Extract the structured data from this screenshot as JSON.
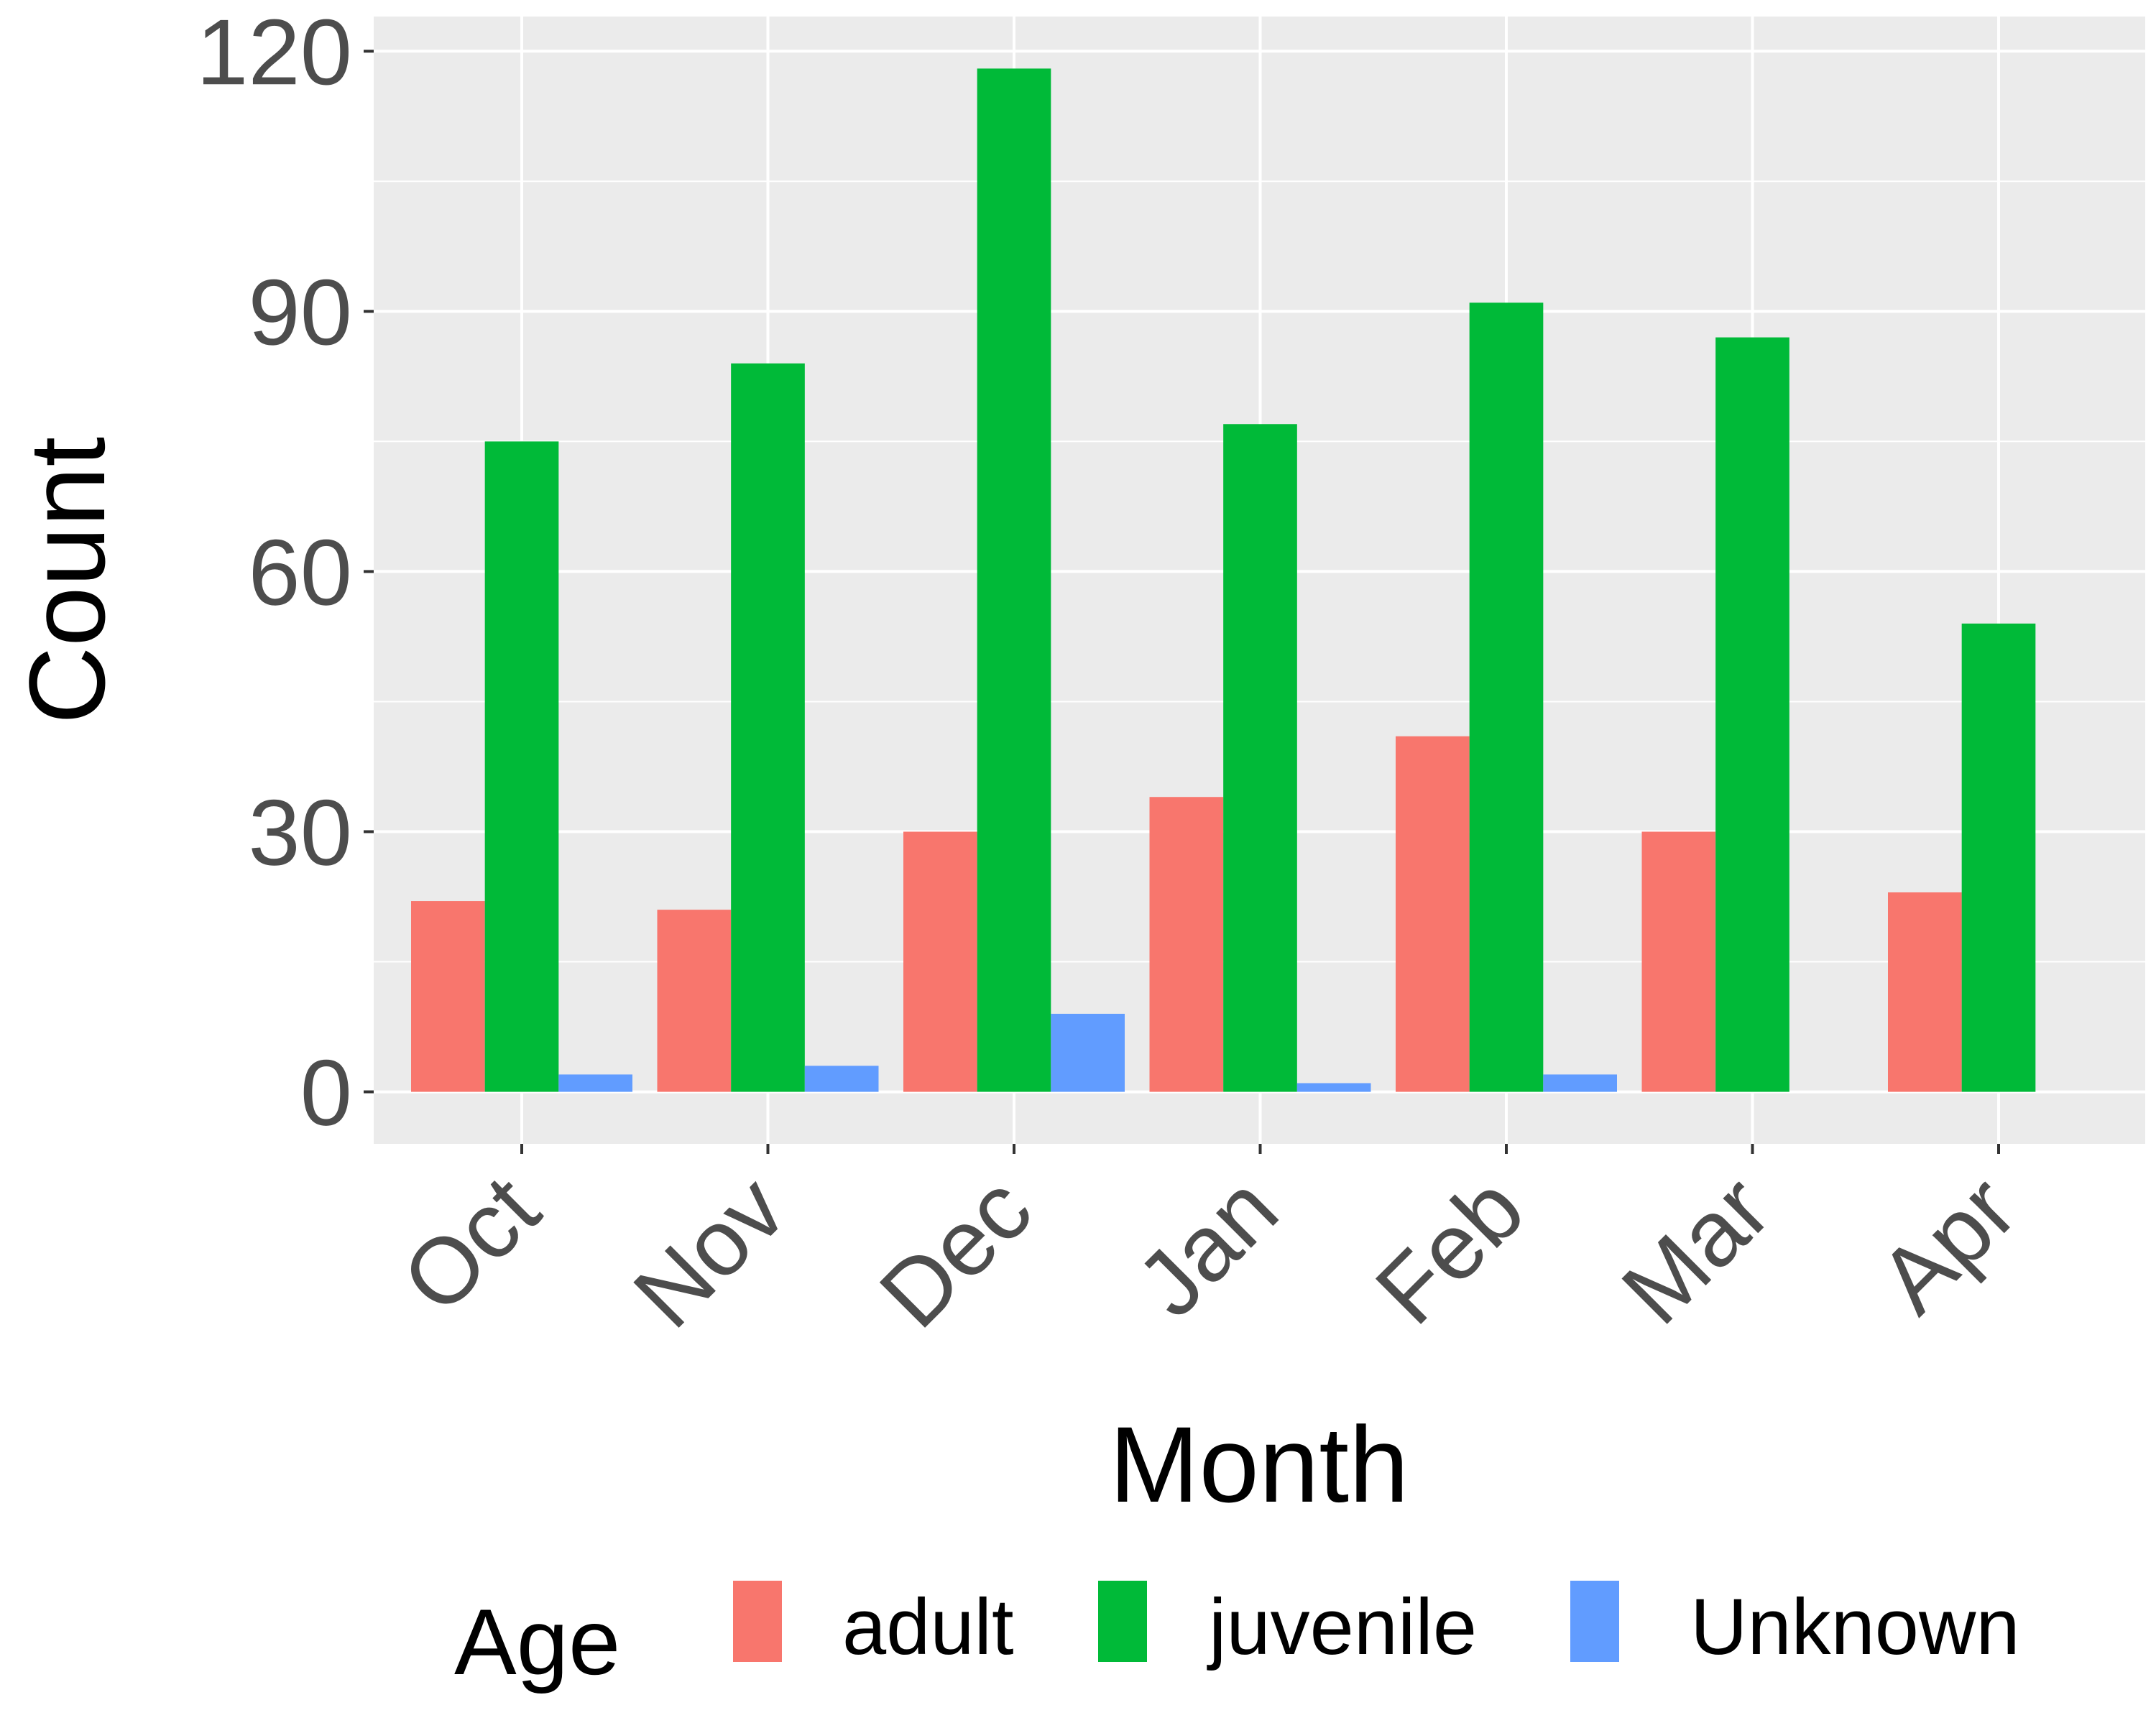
{
  "chart_data": {
    "type": "bar",
    "title": "",
    "xlabel": "Month",
    "ylabel": "Count",
    "categories": [
      "Oct",
      "Nov",
      "Dec",
      "Jan",
      "Feb",
      "Mar",
      "Apr"
    ],
    "series": [
      {
        "name": "adult",
        "color": "#F8766D",
        "values": [
          22,
          21,
          30,
          34,
          41,
          30,
          23
        ]
      },
      {
        "name": "juvenile",
        "color": "#00BA38",
        "values": [
          75,
          84,
          118,
          77,
          91,
          87,
          54
        ]
      },
      {
        "name": "Unknown",
        "color": "#619CFF",
        "values": [
          2,
          3,
          9,
          1,
          2,
          0,
          0
        ]
      }
    ],
    "ylim": [
      -6,
      124
    ],
    "yticks": [
      0,
      30,
      60,
      90,
      120
    ],
    "grid": true,
    "legend": {
      "title": "Age",
      "position": "bottom"
    },
    "panel_color": "#EBEBEB",
    "grid_color": "#FFFFFF"
  }
}
